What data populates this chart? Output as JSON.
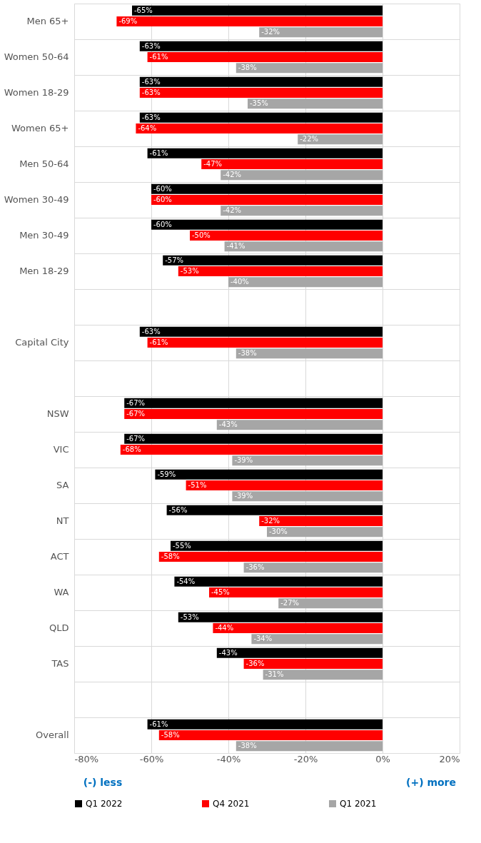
{
  "chart_data": {
    "type": "bar",
    "orientation": "horizontal",
    "categories": [
      "Men 65+",
      "Women 50-64",
      "Women 18-29",
      "Women 65+",
      "Men 50-64",
      "Women 30-49",
      "Men 30-49",
      "Men 18-29",
      null,
      "Capital City",
      null,
      "NSW",
      "VIC",
      "SA",
      "NT",
      "ACT",
      "WA",
      "QLD",
      "TAS",
      null,
      "Overall"
    ],
    "series": [
      {
        "name": "Q1 2022",
        "color": "#000000",
        "values": [
          -65,
          -63,
          -63,
          -63,
          -61,
          -60,
          -60,
          -57,
          null,
          -63,
          null,
          -67,
          -67,
          -59,
          -56,
          -55,
          -54,
          -53,
          -43,
          null,
          -61
        ],
        "value_labels": [
          "-65%",
          "-63%",
          "-63%",
          "-63%",
          "-61%",
          "-60%",
          "-60%",
          "-57%",
          null,
          "-63%",
          null,
          "-67%",
          "-67%",
          "-59%",
          "-56%",
          "-55%",
          "-54%",
          "-53%",
          "-43%",
          null,
          "-61%"
        ]
      },
      {
        "name": "Q4 2021",
        "color": "#ff0000",
        "values": [
          -69,
          -61,
          -63,
          -64,
          -47,
          -60,
          -50,
          -53,
          null,
          -61,
          null,
          -67,
          -68,
          -51,
          -32,
          -58,
          -45,
          -44,
          -36,
          null,
          -58
        ],
        "value_labels": [
          "-69%",
          "-61%",
          "-63%",
          "-64%",
          "-47%",
          "-60%",
          "-50%",
          "-53%",
          null,
          "-61%",
          null,
          "-67%",
          "-68%",
          "-51%",
          "-32%",
          "-58%",
          "-45%",
          "-44%",
          "-36%",
          null,
          "-58%"
        ]
      },
      {
        "name": "Q1 2021",
        "color": "#a6a6a6",
        "values": [
          -32,
          -38,
          -35,
          -22,
          -42,
          -42,
          -41,
          -40,
          null,
          -38,
          null,
          -43,
          -39,
          -39,
          -30,
          -36,
          -27,
          -34,
          -31,
          null,
          -38
        ],
        "value_labels": [
          "-32%",
          "-38%",
          "-35%",
          "-22%",
          "-42%",
          "-42%",
          "-41%",
          "-40%",
          null,
          "-38%",
          null,
          "-43%",
          "-39%",
          "-39%",
          "-30%",
          "-36%",
          "-27%",
          "-34%",
          "-31%",
          null,
          "-38%"
        ]
      }
    ],
    "xlim": [
      -80,
      20
    ],
    "xticks": [
      {
        "value": -80,
        "label": "-80%"
      },
      {
        "value": -60,
        "label": "-60%"
      },
      {
        "value": -40,
        "label": "-40%"
      },
      {
        "value": -20,
        "label": "-20%"
      },
      {
        "value": 0,
        "label": "0%"
      },
      {
        "value": 20,
        "label": "20%"
      }
    ],
    "annotations": [
      "(-) less",
      "(+) more"
    ],
    "grid": true,
    "legend": "bottom"
  }
}
